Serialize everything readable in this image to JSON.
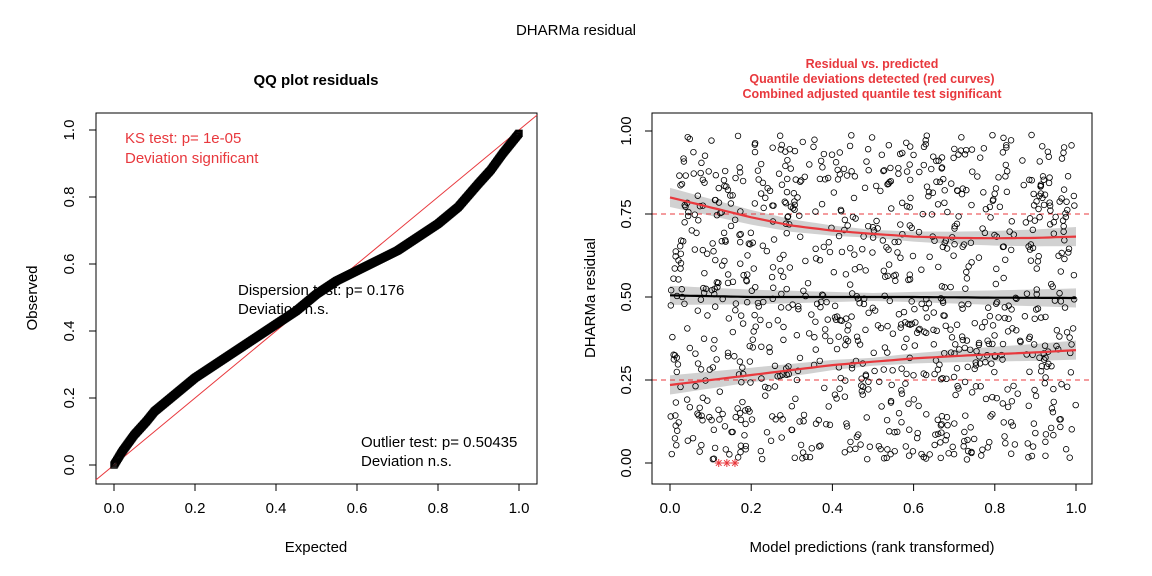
{
  "figure_title": "DHARMa residual",
  "chart_data": [
    {
      "type": "scatter",
      "panel": "left",
      "title": "QQ plot residuals",
      "xlabel": "Expected",
      "ylabel": "Observed",
      "xlim": [
        0,
        1
      ],
      "ylim": [
        0,
        1
      ],
      "x_ticks": [
        "0.0",
        "0.2",
        "0.4",
        "0.6",
        "0.8",
        "1.0"
      ],
      "y_ticks": [
        "0.0",
        "0.2",
        "0.4",
        "0.6",
        "0.8",
        "1.0"
      ],
      "reference_line": {
        "from": [
          0,
          0
        ],
        "to": [
          1,
          1
        ],
        "color": "#e8383d"
      },
      "qq_curve": {
        "x": [
          0.0,
          0.02,
          0.05,
          0.08,
          0.1,
          0.15,
          0.2,
          0.25,
          0.3,
          0.35,
          0.4,
          0.45,
          0.5,
          0.55,
          0.6,
          0.65,
          0.7,
          0.75,
          0.8,
          0.85,
          0.9,
          0.93,
          0.96,
          0.98,
          1.0
        ],
        "y": [
          0.0,
          0.04,
          0.09,
          0.13,
          0.16,
          0.21,
          0.26,
          0.3,
          0.34,
          0.38,
          0.42,
          0.46,
          0.51,
          0.55,
          0.58,
          0.61,
          0.64,
          0.68,
          0.72,
          0.77,
          0.84,
          0.88,
          0.93,
          0.96,
          0.99
        ],
        "color": "#000000"
      },
      "annotations": {
        "ks_line1": "KS test: p= 1e-05",
        "ks_line2": "Deviation  significant",
        "disp_line1": "Dispersion test: p= 0.176",
        "disp_line2": "Deviation  n.s.",
        "out_line1": "Outlier test: p= 0.50435",
        "out_line2": "Deviation  n.s."
      },
      "colors": {
        "significant": "#e8383d",
        "normal": "#000000"
      }
    },
    {
      "type": "scatter",
      "panel": "right",
      "title_lines": [
        "Residual vs. predicted",
        "Quantile deviations detected (red curves)",
        "Combined adjusted quantile test significant"
      ],
      "xlabel": "Model predictions (rank transformed)",
      "ylabel": "DHARMa residual",
      "xlim": [
        0,
        1
      ],
      "ylim": [
        0,
        1
      ],
      "x_ticks": [
        "0.0",
        "0.2",
        "0.4",
        "0.6",
        "0.8",
        "1.0"
      ],
      "y_ticks": [
        "0.00",
        "0.25",
        "0.50",
        "0.75",
        "1.00"
      ],
      "reference_quantiles": [
        0.25,
        0.5,
        0.75
      ],
      "quantile_curves": [
        {
          "quantile": 0.25,
          "x": [
            0,
            0.1,
            0.2,
            0.3,
            0.4,
            0.5,
            0.6,
            0.7,
            0.8,
            0.9,
            1.0
          ],
          "y": [
            0.235,
            0.25,
            0.265,
            0.28,
            0.295,
            0.305,
            0.315,
            0.322,
            0.328,
            0.333,
            0.34
          ],
          "color": "#e8383d"
        },
        {
          "quantile": 0.5,
          "x": [
            0,
            0.2,
            0.4,
            0.6,
            0.8,
            1.0
          ],
          "y": [
            0.505,
            0.5,
            0.5,
            0.5,
            0.498,
            0.497
          ],
          "color": "#000000"
        },
        {
          "quantile": 0.75,
          "x": [
            0,
            0.1,
            0.2,
            0.3,
            0.4,
            0.5,
            0.6,
            0.7,
            0.8,
            0.9,
            1.0
          ],
          "y": [
            0.8,
            0.77,
            0.74,
            0.715,
            0.7,
            0.69,
            0.682,
            0.678,
            0.677,
            0.678,
            0.682
          ],
          "color": "#e8383d"
        }
      ],
      "band_halfwidth": 0.012,
      "point_count": 1000,
      "outliers": [
        {
          "x": 0.12,
          "y": 0.0
        },
        {
          "x": 0.14,
          "y": 0.0
        },
        {
          "x": 0.16,
          "y": 0.0
        }
      ],
      "colors": {
        "title": "#e8383d",
        "band": "#cccccc",
        "point": "#000000",
        "outlier": "#e8383d"
      }
    }
  ]
}
